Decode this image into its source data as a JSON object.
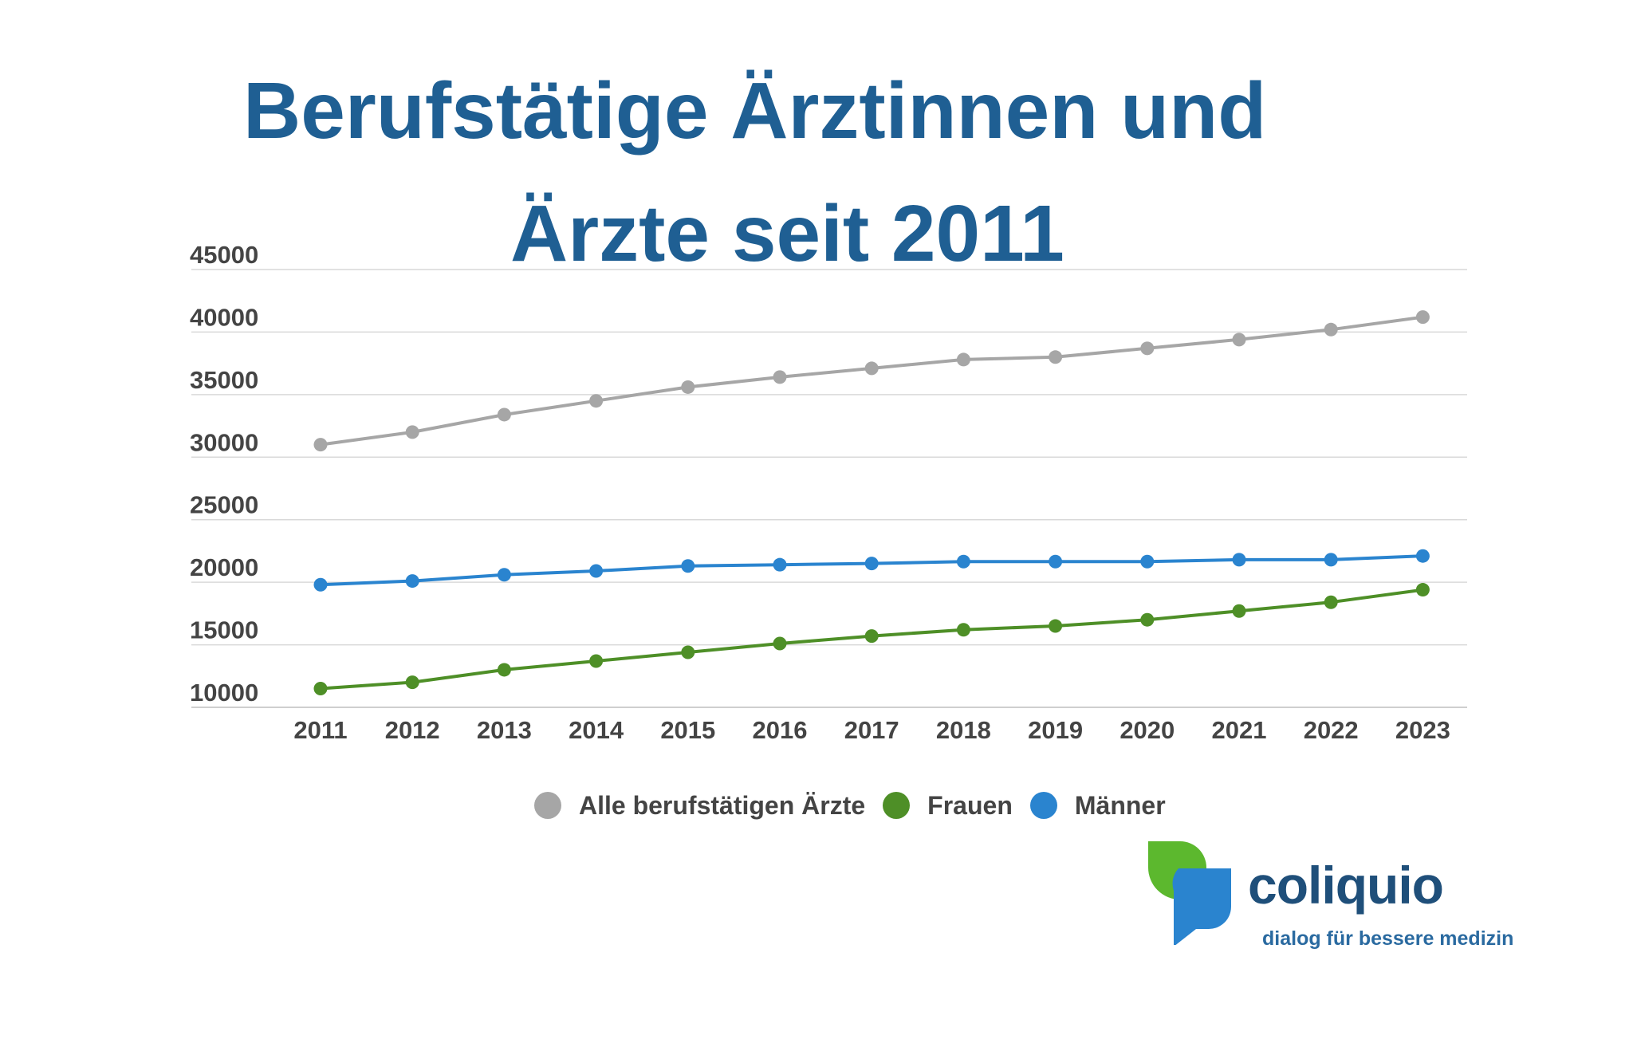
{
  "colors": {
    "title": "#1f5f93",
    "grid": "#d9d9d9",
    "tick_text": "#444444",
    "logo_green": "#5cb82e",
    "logo_blue": "#2a84cf"
  },
  "chart_data": {
    "type": "line",
    "title": "Berufstätige Ärztinnen und Ärzte seit 2011",
    "title_lines": [
      "Berufstätige Ärztinnen und",
      "Ärzte seit 2011"
    ],
    "xlabel": "",
    "ylabel": "",
    "x": [
      "2011",
      "2012",
      "2013",
      "2014",
      "2015",
      "2016",
      "2017",
      "2018",
      "2019",
      "2020",
      "2021",
      "2022",
      "2023"
    ],
    "yticks": [
      10000,
      15000,
      20000,
      25000,
      30000,
      35000,
      40000,
      45000
    ],
    "ylim": [
      10000,
      45000
    ],
    "grid": true,
    "legend_position": "bottom",
    "series": [
      {
        "name": "Alle berufstätigen Ärzte",
        "color": "#a6a6a6",
        "values": [
          31000,
          32000,
          33400,
          34500,
          35600,
          36400,
          37100,
          37800,
          38000,
          38700,
          39400,
          40200,
          41200
        ]
      },
      {
        "name": "Frauen",
        "color": "#4e8f27",
        "values": [
          11500,
          12000,
          13000,
          13700,
          14400,
          15100,
          15700,
          16200,
          16500,
          17000,
          17700,
          18400,
          19400
        ]
      },
      {
        "name": "Männer",
        "color": "#2a84cf",
        "values": [
          19800,
          20100,
          20600,
          20900,
          21300,
          21400,
          21500,
          21650,
          21650,
          21650,
          21800,
          21800,
          22100
        ]
      }
    ]
  },
  "logo": {
    "brand": "coliquio",
    "tagline": "dialog für bessere medizin"
  }
}
